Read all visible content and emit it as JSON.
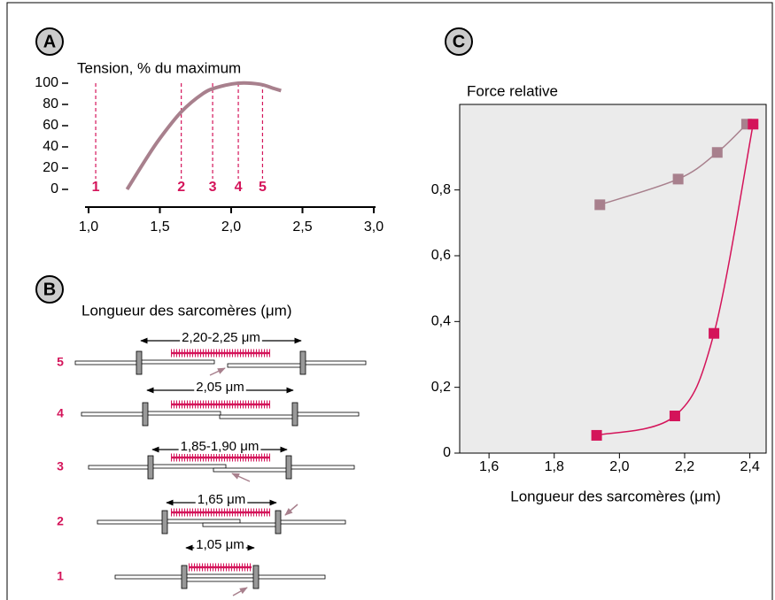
{
  "panels": [
    "A",
    "B",
    "C"
  ],
  "chart_data": [
    {
      "type": "line",
      "ylabel": "Tension, % du maximum",
      "x": [
        1.27,
        1.4,
        1.5,
        1.65,
        1.8,
        1.9,
        2.05,
        2.2,
        2.3,
        2.35
      ],
      "series": [
        {
          "color": "#a8808d",
          "values": [
            0,
            28,
            48,
            73,
            90,
            96,
            100,
            99,
            95,
            93
          ]
        }
      ],
      "xlim": [
        1.0,
        3.0
      ],
      "xticks": [
        {
          "value": 1.0,
          "label": "1,0"
        },
        {
          "value": 1.5,
          "label": "1,5"
        },
        {
          "value": 2.0,
          "label": "2,0"
        },
        {
          "value": 2.5,
          "label": "2,5"
        },
        {
          "value": 3.0,
          "label": "3,0"
        }
      ],
      "ylim": [
        0,
        100
      ],
      "yticks": [
        0,
        20,
        40,
        60,
        80,
        100
      ],
      "marker_color": "#d4145a",
      "annotations": [
        {
          "x": 1.05,
          "label": "1"
        },
        {
          "x": 1.65,
          "label": "2"
        },
        {
          "x": 1.87,
          "label": "3"
        },
        {
          "x": 2.05,
          "label": "4"
        },
        {
          "x": 2.22,
          "label": "5"
        }
      ]
    },
    {
      "type": "line",
      "ylabel": "Force relative",
      "xlabel": "Longueur des sarcomères (μm)",
      "series": [
        {
          "color": "#a8808d",
          "x": [
            1.94,
            2.18,
            2.3,
            2.39
          ],
          "values": [
            0.755,
            0.833,
            0.914,
            1.0
          ]
        },
        {
          "color": "#d4145a",
          "x": [
            1.93,
            2.17,
            2.29,
            2.41
          ],
          "values": [
            0.054,
            0.113,
            0.364,
            1.0
          ]
        }
      ],
      "xlim": [
        1.51,
        2.45
      ],
      "xticks": [
        {
          "value": 1.6,
          "label": "1,6"
        },
        {
          "value": 1.8,
          "label": "1,8"
        },
        {
          "value": 2.0,
          "label": "2,0"
        },
        {
          "value": 2.2,
          "label": "2,2"
        },
        {
          "value": 2.4,
          "label": "2,4"
        }
      ],
      "ylim": [
        0,
        1.06
      ],
      "yticks": [
        0,
        {
          "value": 0.2,
          "label": "0,2"
        },
        {
          "value": 0.4,
          "label": "0,4"
        },
        {
          "value": 0.6,
          "label": "0,6"
        },
        {
          "value": 0.8,
          "label": "0,8"
        }
      ]
    }
  ],
  "diagram": {
    "title": "Longueur des sarcomères (μm)",
    "rows": [
      {
        "label": "5",
        "length": "2,20-2,25 μm"
      },
      {
        "label": "4",
        "length": "2,05 μm"
      },
      {
        "label": "3",
        "length": "1,85-1,90 μm"
      },
      {
        "label": "2",
        "length": "1,65 μm"
      },
      {
        "label": "1",
        "length": "1,05 μm"
      }
    ]
  }
}
